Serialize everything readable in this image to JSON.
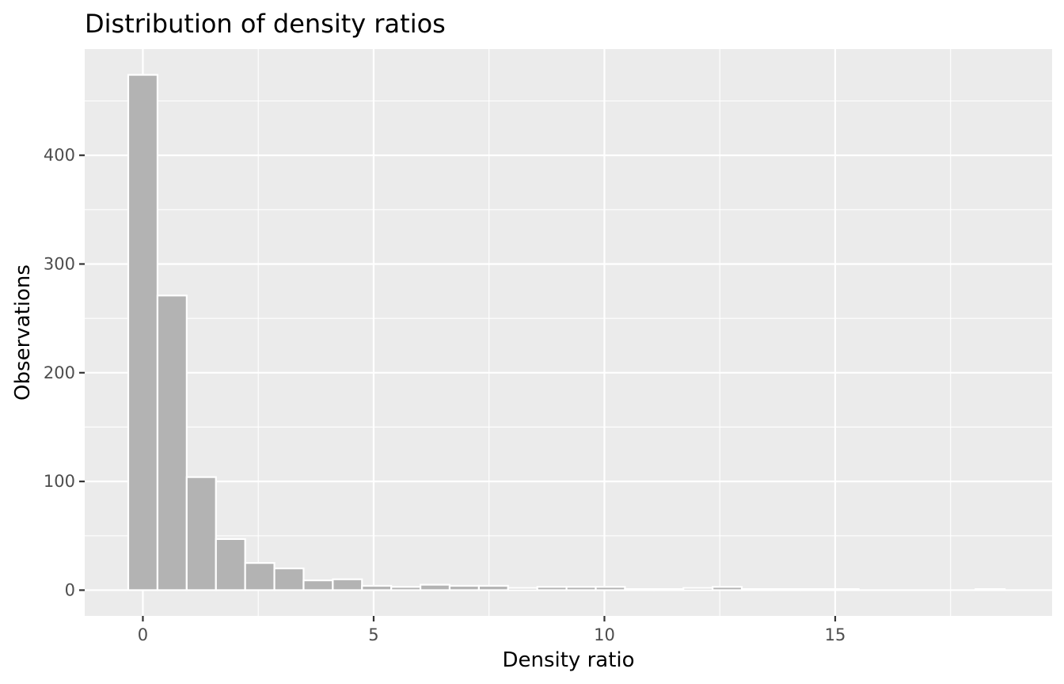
{
  "chart_data": {
    "type": "bar",
    "title": "Distribution of density ratios",
    "xlabel": "Density ratio",
    "ylabel": "Observations",
    "bin_width": 0.633,
    "bins": [
      {
        "x_start": -0.317,
        "x_end": 0.317,
        "count": 474
      },
      {
        "x_start": 0.317,
        "x_end": 0.95,
        "count": 271
      },
      {
        "x_start": 0.95,
        "x_end": 1.583,
        "count": 104
      },
      {
        "x_start": 1.583,
        "x_end": 2.216,
        "count": 47
      },
      {
        "x_start": 2.216,
        "x_end": 2.849,
        "count": 25
      },
      {
        "x_start": 2.849,
        "x_end": 3.482,
        "count": 20
      },
      {
        "x_start": 3.482,
        "x_end": 4.115,
        "count": 9
      },
      {
        "x_start": 4.115,
        "x_end": 4.748,
        "count": 10
      },
      {
        "x_start": 4.748,
        "x_end": 5.381,
        "count": 4
      },
      {
        "x_start": 5.381,
        "x_end": 6.014,
        "count": 3
      },
      {
        "x_start": 6.014,
        "x_end": 6.647,
        "count": 5
      },
      {
        "x_start": 6.647,
        "x_end": 7.28,
        "count": 4
      },
      {
        "x_start": 7.28,
        "x_end": 7.913,
        "count": 4
      },
      {
        "x_start": 7.913,
        "x_end": 8.546,
        "count": 2
      },
      {
        "x_start": 8.546,
        "x_end": 9.179,
        "count": 3
      },
      {
        "x_start": 9.179,
        "x_end": 9.812,
        "count": 3
      },
      {
        "x_start": 9.812,
        "x_end": 10.445,
        "count": 3
      },
      {
        "x_start": 10.445,
        "x_end": 11.078,
        "count": 1
      },
      {
        "x_start": 11.078,
        "x_end": 11.711,
        "count": 1
      },
      {
        "x_start": 11.711,
        "x_end": 12.344,
        "count": 2
      },
      {
        "x_start": 12.344,
        "x_end": 12.977,
        "count": 3
      },
      {
        "x_start": 12.977,
        "x_end": 13.61,
        "count": 1
      },
      {
        "x_start": 13.61,
        "x_end": 14.243,
        "count": 1
      },
      {
        "x_start": 14.243,
        "x_end": 14.876,
        "count": 1
      },
      {
        "x_start": 14.876,
        "x_end": 15.509,
        "count": 1
      },
      {
        "x_start": 15.509,
        "x_end": 16.142,
        "count": 0
      },
      {
        "x_start": 16.142,
        "x_end": 16.775,
        "count": 0
      },
      {
        "x_start": 16.775,
        "x_end": 17.408,
        "count": 0
      },
      {
        "x_start": 17.408,
        "x_end": 18.041,
        "count": 0
      },
      {
        "x_start": 18.041,
        "x_end": 18.674,
        "count": 1
      }
    ],
    "xlim": [
      -1.26,
      19.7
    ],
    "ylim": [
      -23.7,
      497.7
    ],
    "x_ticks": [
      0,
      5,
      10,
      15
    ],
    "x_tick_labels": [
      "0",
      "5",
      "10",
      "15"
    ],
    "y_ticks": [
      0,
      100,
      200,
      300,
      400
    ],
    "y_tick_labels": [
      "0",
      "100",
      "200",
      "300",
      "400"
    ],
    "grid": true,
    "colors": {
      "panel": "#ebebeb",
      "grid": "#ffffff",
      "bar_fill": "#b3b3b3",
      "bar_outline": "#ffffff",
      "tick_text": "#4d4d4d",
      "tick_mark": "#333333"
    }
  }
}
